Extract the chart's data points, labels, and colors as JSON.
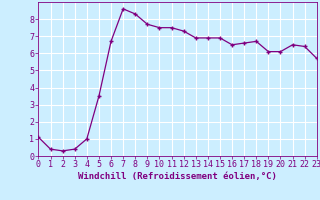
{
  "x": [
    0,
    1,
    2,
    3,
    4,
    5,
    6,
    7,
    8,
    9,
    10,
    11,
    12,
    13,
    14,
    15,
    16,
    17,
    18,
    19,
    20,
    21,
    22,
    23
  ],
  "y": [
    1.1,
    0.4,
    0.3,
    0.4,
    1.0,
    3.5,
    6.7,
    8.6,
    8.3,
    7.7,
    7.5,
    7.5,
    7.3,
    6.9,
    6.9,
    6.9,
    6.5,
    6.6,
    6.7,
    6.1,
    6.1,
    6.5,
    6.4,
    5.7
  ],
  "line_color": "#800080",
  "marker": "+",
  "marker_size": 3,
  "line_width": 0.9,
  "marker_edge_width": 1.0,
  "xlabel": "Windchill (Refroidissement éolien,°C)",
  "xlim": [
    0,
    23
  ],
  "ylim": [
    0,
    9
  ],
  "xticks": [
    0,
    1,
    2,
    3,
    4,
    5,
    6,
    7,
    8,
    9,
    10,
    11,
    12,
    13,
    14,
    15,
    16,
    17,
    18,
    19,
    20,
    21,
    22,
    23
  ],
  "yticks": [
    0,
    1,
    2,
    3,
    4,
    5,
    6,
    7,
    8
  ],
  "background_color": "#cceeff",
  "grid_color": "#ffffff",
  "tick_label_color": "#800080",
  "xlabel_color": "#800080",
  "xlabel_fontsize": 6.5,
  "tick_fontsize": 6.0,
  "border_color": "#800080"
}
